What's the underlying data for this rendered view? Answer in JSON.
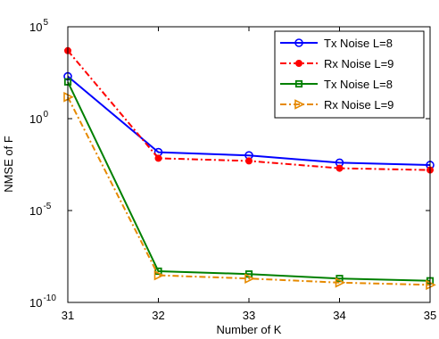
{
  "chart_data": {
    "type": "line",
    "title": "",
    "xlabel": "Number of K",
    "ylabel": "NMSE of F",
    "x": [
      31,
      32,
      33,
      34,
      35
    ],
    "xlim": [
      31,
      35
    ],
    "ylim_log10": [
      -10,
      5
    ],
    "yscale": "log",
    "x_tick_labels": [
      "31",
      "32",
      "33",
      "34",
      "35"
    ],
    "y_tick_labels": [
      {
        "base": "10",
        "exp": "5"
      },
      {
        "base": "10",
        "exp": "0"
      },
      {
        "base": "10",
        "exp": "-5"
      },
      {
        "base": "10",
        "exp": "-10"
      }
    ],
    "grid": false,
    "legend_position": "top-right",
    "series": [
      {
        "name": "Tx Noise L=8",
        "color": "#0000ff",
        "line": "solid",
        "marker": "circle",
        "values": [
          200,
          0.015,
          0.01,
          0.004,
          0.003
        ]
      },
      {
        "name": "Rx Noise L=9",
        "color": "#ff0000",
        "line": "dashdot",
        "marker": "dot",
        "values": [
          5000,
          0.007,
          0.005,
          0.002,
          0.0016
        ]
      },
      {
        "name": "Tx Noise L=8",
        "color": "#008000",
        "line": "solid",
        "marker": "square",
        "values": [
          100,
          5e-09,
          3.5e-09,
          2e-09,
          1.5e-09
        ]
      },
      {
        "name": "Rx Noise L=9",
        "color": "#e68a00",
        "line": "dashdot",
        "marker": "triangle-right",
        "values": [
          15,
          3e-09,
          2e-09,
          1.2e-09,
          9e-10
        ]
      }
    ]
  }
}
